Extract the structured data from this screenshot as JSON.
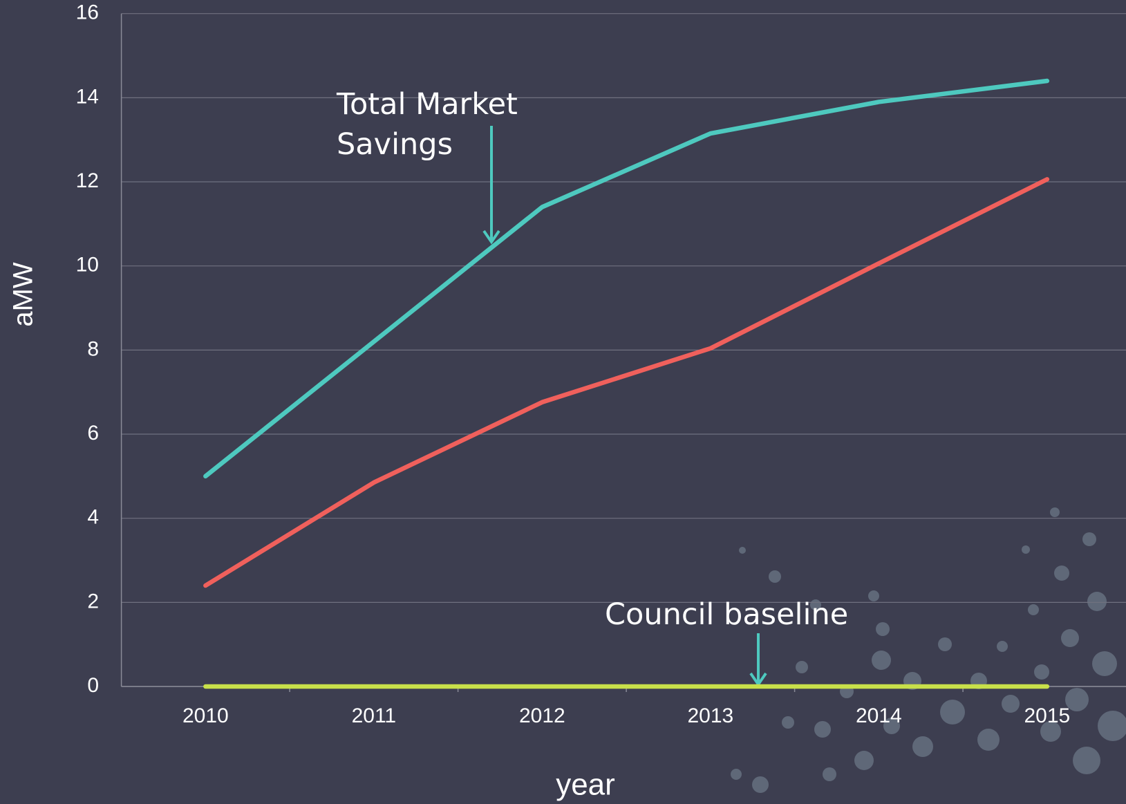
{
  "chart_data": {
    "type": "line",
    "x_label": "year",
    "y_label": "aMW",
    "categories": [
      "2010",
      "2011",
      "2012",
      "2013",
      "2014",
      "2015"
    ],
    "series": [
      {
        "color": "#4ec9bf",
        "values": [
          5.0,
          8.2,
          11.4,
          13.15,
          13.9,
          14.4
        ]
      },
      {
        "color": "#f0605c",
        "values": [
          2.4,
          4.85,
          6.76,
          8.04,
          10.06,
          12.06
        ]
      },
      {
        "color": "#c8e04a",
        "values": [
          0,
          0,
          0,
          0,
          0,
          0
        ]
      }
    ],
    "annotations": [
      "Total Market Savings",
      "Council baseline"
    ],
    "ylim": [
      0,
      16
    ],
    "yticks": [
      0,
      2,
      4,
      6,
      8,
      10,
      12,
      14,
      16
    ],
    "grid": true
  }
}
